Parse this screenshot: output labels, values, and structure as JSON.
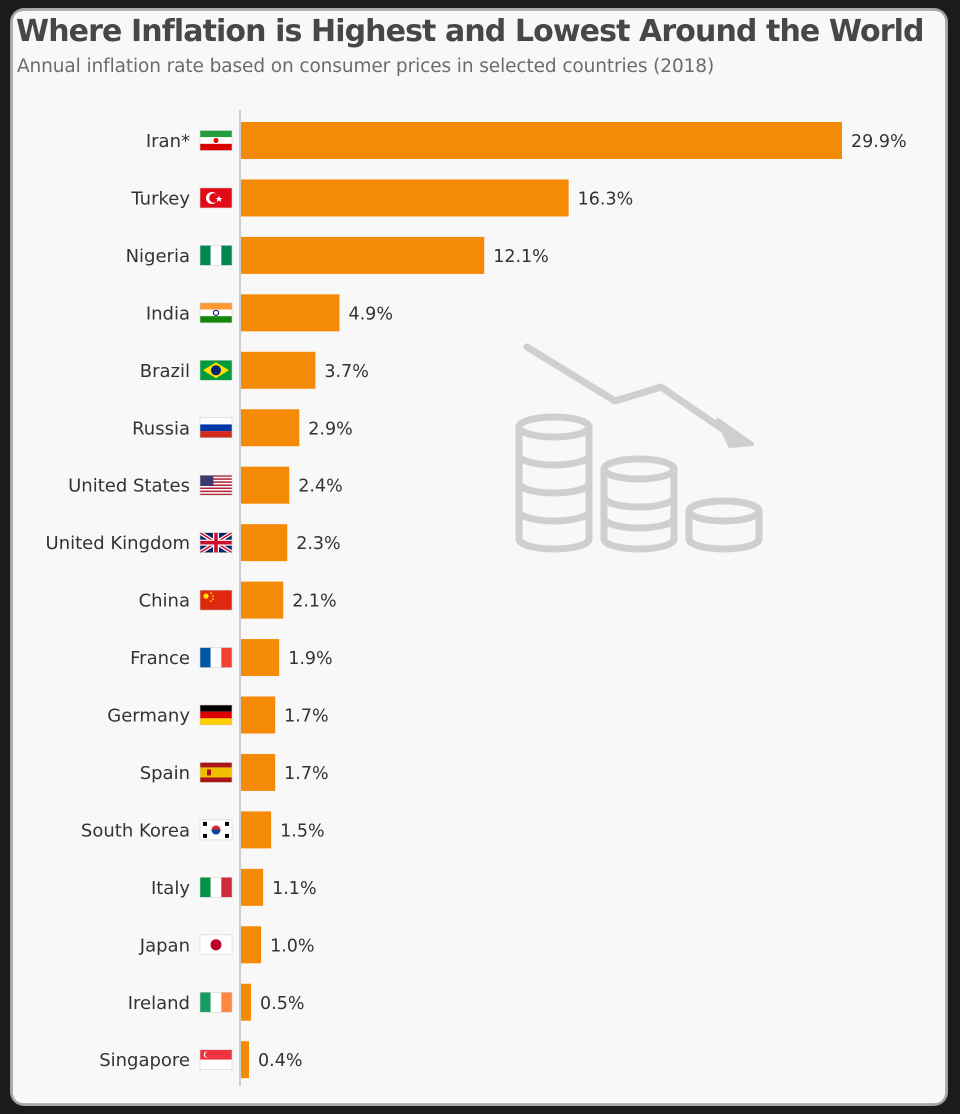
{
  "chart_data": {
    "type": "bar",
    "orientation": "horizontal",
    "title": "Where Inflation is Highest and Lowest Around the World",
    "subtitle": "Annual inflation rate based on consumer prices in selected countries (2018)",
    "categories": [
      "Iran*",
      "Turkey",
      "Nigeria",
      "India",
      "Brazil",
      "Russia",
      "United States",
      "United Kingdom",
      "China",
      "France",
      "Germany",
      "Spain",
      "South Korea",
      "Italy",
      "Japan",
      "Ireland",
      "Singapore"
    ],
    "values": [
      29.9,
      16.3,
      12.1,
      4.9,
      3.7,
      2.9,
      2.4,
      2.3,
      2.1,
      1.9,
      1.7,
      1.7,
      1.5,
      1.1,
      1.0,
      0.5,
      0.4
    ],
    "value_labels": [
      "29.9%",
      "16.3%",
      "12.1%",
      "4.9%",
      "3.7%",
      "2.9%",
      "2.4%",
      "2.3%",
      "2.1%",
      "1.9%",
      "1.7%",
      "1.7%",
      "1.5%",
      "1.1%",
      "1.0%",
      "0.5%",
      "0.4%"
    ],
    "flags": [
      "iran-flag-icon",
      "turkey-flag-icon",
      "nigeria-flag-icon",
      "india-flag-icon",
      "brazil-flag-icon",
      "russia-flag-icon",
      "usa-flag-icon",
      "uk-flag-icon",
      "china-flag-icon",
      "france-flag-icon",
      "germany-flag-icon",
      "spain-flag-icon",
      "south-korea-flag-icon",
      "italy-flag-icon",
      "japan-flag-icon",
      "ireland-flag-icon",
      "singapore-flag-icon"
    ],
    "xlim": [
      0,
      29.9
    ],
    "grid": false,
    "legend": "none",
    "bar_color": "#f58a07",
    "decoration": "declining-coins-icon"
  }
}
